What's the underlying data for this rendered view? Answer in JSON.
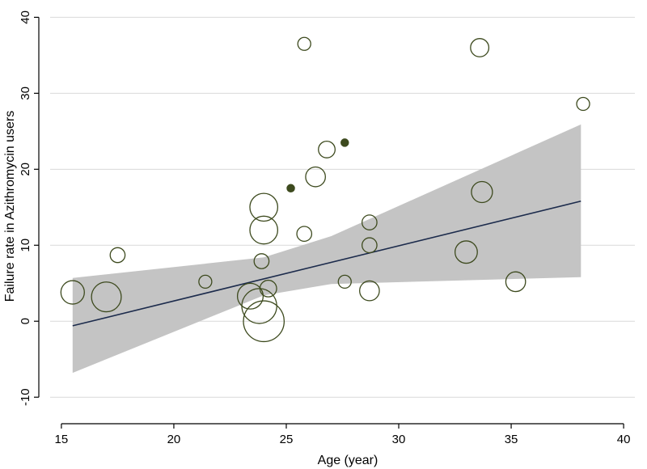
{
  "chart_data": {
    "type": "scatter",
    "title": "",
    "xlabel": "Age (year)",
    "ylabel": "Failure rate in Azithromycin users",
    "xlim": [
      14.5,
      40.5
    ],
    "ylim": [
      -12,
      41
    ],
    "x_ticks": [
      15,
      20,
      25,
      30,
      35,
      40
    ],
    "y_ticks": [
      -10,
      0,
      10,
      20,
      30,
      40
    ],
    "grid": "y",
    "legend": "none",
    "bubble_scale": "relative weight",
    "points": [
      {
        "x": 15.5,
        "y": 3.8,
        "size": 10
      },
      {
        "x": 17.0,
        "y": 3.2,
        "size": 16
      },
      {
        "x": 17.5,
        "y": 8.7,
        "size": 4
      },
      {
        "x": 21.4,
        "y": 5.2,
        "size": 3
      },
      {
        "x": 23.4,
        "y": 3.3,
        "size": 12
      },
      {
        "x": 23.8,
        "y": 2.0,
        "size": 22
      },
      {
        "x": 24.0,
        "y": 0.0,
        "size": 30
      },
      {
        "x": 24.0,
        "y": 15.0,
        "size": 14
      },
      {
        "x": 24.0,
        "y": 12.0,
        "size": 14
      },
      {
        "x": 23.9,
        "y": 7.9,
        "size": 4
      },
      {
        "x": 24.2,
        "y": 4.3,
        "size": 5
      },
      {
        "x": 25.2,
        "y": 17.5,
        "size": 1
      },
      {
        "x": 25.8,
        "y": 36.5,
        "size": 3
      },
      {
        "x": 25.8,
        "y": 11.5,
        "size": 4
      },
      {
        "x": 26.3,
        "y": 19.0,
        "size": 7
      },
      {
        "x": 26.8,
        "y": 22.6,
        "size": 5
      },
      {
        "x": 27.6,
        "y": 23.5,
        "size": 1
      },
      {
        "x": 27.6,
        "y": 5.2,
        "size": 3
      },
      {
        "x": 28.7,
        "y": 13.0,
        "size": 4
      },
      {
        "x": 28.7,
        "y": 10.0,
        "size": 4
      },
      {
        "x": 28.7,
        "y": 4.0,
        "size": 7
      },
      {
        "x": 33.0,
        "y": 9.1,
        "size": 9
      },
      {
        "x": 33.6,
        "y": 36.0,
        "size": 6
      },
      {
        "x": 33.7,
        "y": 17.0,
        "size": 8
      },
      {
        "x": 35.2,
        "y": 5.2,
        "size": 7
      },
      {
        "x": 38.2,
        "y": 28.6,
        "size": 3
      }
    ],
    "fit_line": {
      "x": [
        15.5,
        38.1
      ],
      "y": [
        -0.6,
        15.8
      ]
    },
    "confidence_band": {
      "x": [
        15.5,
        24,
        27,
        38.1
      ],
      "upper": [
        5.7,
        8.4,
        11.2,
        25.9
      ],
      "lower": [
        -6.8,
        3.4,
        4.9,
        5.8
      ]
    },
    "colors": {
      "band": "#c4c4c4",
      "fit": "#1c2b4c",
      "marker": "#3d4a1e",
      "grid": "#d9d9d9",
      "axis": "#000000"
    }
  }
}
